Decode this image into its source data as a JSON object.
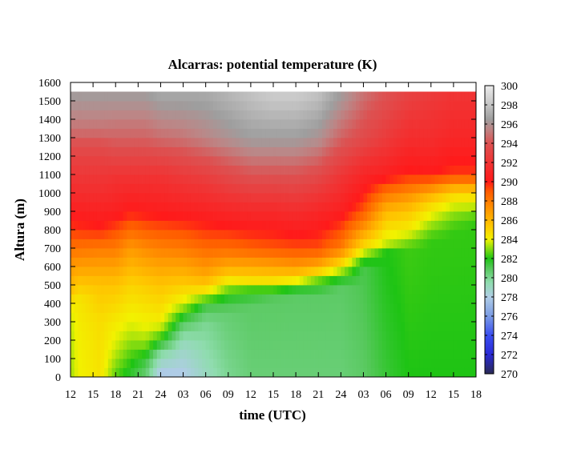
{
  "chart_data": {
    "type": "heatmap",
    "title": "Alcarras: potential temperature (K)",
    "xlabel": "time (UTC)",
    "ylabel": "Altura (m)",
    "x_tick_labels": [
      "12",
      "15",
      "18",
      "21",
      "24",
      "03",
      "06",
      "09",
      "12",
      "15",
      "18",
      "21",
      "24",
      "03",
      "06",
      "09",
      "12",
      "15",
      "18"
    ],
    "xlim_hours": [
      0,
      54
    ],
    "y_ticks": [
      0,
      100,
      200,
      300,
      400,
      500,
      600,
      700,
      800,
      900,
      1000,
      1100,
      1200,
      1300,
      1400,
      1500,
      1600
    ],
    "ylim": [
      0,
      1600
    ],
    "data_top_height": 1550,
    "colorbar": {
      "range": [
        270,
        300
      ],
      "ticks": [
        270,
        272,
        274,
        276,
        278,
        280,
        282,
        284,
        286,
        288,
        290,
        292,
        294,
        296,
        298,
        300
      ],
      "stops": [
        [
          270,
          "#2a2a55"
        ],
        [
          272,
          "#2a2ad6"
        ],
        [
          274,
          "#3a4ef0"
        ],
        [
          276,
          "#7a9be4"
        ],
        [
          278,
          "#b0cde6"
        ],
        [
          279.5,
          "#8fdcae"
        ],
        [
          281,
          "#55c85a"
        ],
        [
          282,
          "#1ec414"
        ],
        [
          283,
          "#86dc10"
        ],
        [
          284,
          "#f2f200"
        ],
        [
          285.5,
          "#ffc400"
        ],
        [
          287,
          "#ff9a00"
        ],
        [
          289,
          "#ff5a00"
        ],
        [
          290,
          "#ff1a1a"
        ],
        [
          292,
          "#f03434"
        ],
        [
          294,
          "#dc5252"
        ],
        [
          295.5,
          "#bc8686"
        ],
        [
          296.5,
          "#9e9e9e"
        ],
        [
          298,
          "#c4c4c4"
        ],
        [
          300,
          "#ececec"
        ]
      ]
    },
    "profiles": [
      {
        "hour": 0,
        "z": [
          0,
          150,
          300,
          400,
          450,
          600,
          800,
          1000,
          1200,
          1350,
          1550
        ],
        "theta": [
          283.2,
          283.4,
          283.6,
          284.3,
          285.5,
          287,
          289.5,
          291.3,
          293,
          295,
          296.5
        ]
      },
      {
        "hour": 1,
        "z": [
          0,
          200,
          420,
          500,
          600,
          800,
          1000,
          1200,
          1350,
          1550
        ],
        "theta": [
          284,
          284.1,
          284.4,
          285.3,
          286.8,
          289.6,
          291.5,
          293,
          295,
          296.5
        ]
      },
      {
        "hour": 4,
        "z": [
          0,
          300,
          500,
          700,
          800,
          1000,
          1200,
          1350,
          1550
        ],
        "theta": [
          284.5,
          284.7,
          285.5,
          288,
          289.8,
          291.5,
          293,
          295,
          296.5
        ]
      },
      {
        "hour": 6,
        "z": [
          0,
          150,
          300,
          500,
          700,
          900,
          1100,
          1300,
          1550
        ],
        "theta": [
          282.5,
          283.6,
          284.3,
          285.5,
          288,
          290.5,
          292,
          294.5,
          296.5
        ]
      },
      {
        "hour": 8,
        "z": [
          0,
          100,
          250,
          500,
          700,
          900,
          1100,
          1300,
          1550
        ],
        "theta": [
          281.5,
          282.3,
          283.6,
          285,
          287,
          290,
          292,
          294.5,
          296.5
        ]
      },
      {
        "hour": 10,
        "z": [
          0,
          100,
          150,
          250,
          500,
          700,
          900,
          1100,
          1300,
          1550
        ],
        "theta": [
          280.5,
          281.5,
          282.6,
          283.8,
          285.2,
          287.5,
          290.2,
          292,
          294.5,
          296.5
        ]
      },
      {
        "hour": 12,
        "z": [
          0,
          120,
          200,
          300,
          500,
          700,
          900,
          1100,
          1300,
          1550
        ],
        "theta": [
          277.5,
          279.5,
          282,
          284.2,
          285.5,
          287.8,
          290.3,
          292,
          294.8,
          297
        ]
      },
      {
        "hour": 15,
        "z": [
          0,
          200,
          300,
          400,
          500,
          700,
          900,
          1100,
          1300,
          1550
        ],
        "theta": [
          277.8,
          279.2,
          281,
          283.8,
          285.2,
          288,
          290.5,
          292.5,
          295,
          297
        ]
      },
      {
        "hour": 18,
        "z": [
          0,
          300,
          400,
          450,
          550,
          700,
          900,
          1100,
          1300,
          1550
        ],
        "theta": [
          279,
          280,
          281.5,
          284,
          286.5,
          288.5,
          290.7,
          292.8,
          295.5,
          297
        ]
      },
      {
        "hour": 21,
        "z": [
          0,
          350,
          450,
          520,
          600,
          700,
          900,
          1100,
          1300,
          1550
        ],
        "theta": [
          280,
          280.6,
          282,
          284.2,
          286.5,
          288.5,
          291,
          293.5,
          296,
          297.5
        ]
      },
      {
        "hour": 24,
        "z": [
          0,
          400,
          480,
          520,
          600,
          700,
          900,
          1100,
          1300,
          1550
        ],
        "theta": [
          280.5,
          280.8,
          282.5,
          284.5,
          286.5,
          288.8,
          291.2,
          294,
          296.5,
          298
        ]
      },
      {
        "hour": 27,
        "z": [
          0,
          420,
          480,
          520,
          600,
          700,
          900,
          1100,
          1300,
          1550
        ],
        "theta": [
          280.5,
          280.8,
          282.5,
          284.5,
          286.7,
          289,
          291.2,
          294,
          296.5,
          298.5
        ]
      },
      {
        "hour": 30,
        "z": [
          0,
          450,
          500,
          530,
          600,
          700,
          900,
          1100,
          1300,
          1550
        ],
        "theta": [
          280.5,
          280.8,
          282.5,
          284.5,
          287,
          289.2,
          291.5,
          294,
          296.5,
          298.5
        ]
      },
      {
        "hour": 33,
        "z": [
          0,
          450,
          520,
          560,
          620,
          700,
          900,
          1100,
          1300,
          1550
        ],
        "theta": [
          280.5,
          280.8,
          282.5,
          284.5,
          287,
          289.2,
          291,
          293.5,
          296,
          298
        ]
      },
      {
        "hour": 36,
        "z": [
          0,
          500,
          560,
          620,
          700,
          900,
          1100,
          1300,
          1550
        ],
        "theta": [
          280.5,
          280.8,
          282.8,
          285,
          288,
          290.5,
          292.2,
          294.5,
          296.5
        ]
      },
      {
        "hour": 39,
        "z": [
          0,
          600,
          660,
          700,
          800,
          900,
          1100,
          1300,
          1550
        ],
        "theta": [
          280.8,
          281.2,
          283,
          284.5,
          287,
          289,
          291,
          293.5,
          295
        ]
      },
      {
        "hour": 42,
        "z": [
          0,
          680,
          720,
          800,
          900,
          1000,
          1100,
          1300,
          1550
        ],
        "theta": [
          281.5,
          282,
          283.5,
          284.5,
          286,
          288.2,
          290.5,
          292.5,
          294
        ]
      },
      {
        "hour": 45,
        "z": [
          0,
          700,
          800,
          900,
          1000,
          1100,
          1300,
          1550
        ],
        "theta": [
          282,
          282.3,
          284.2,
          285.5,
          287.5,
          289.8,
          291.5,
          293
        ]
      },
      {
        "hour": 48,
        "z": [
          0,
          750,
          850,
          950,
          1000,
          1100,
          1300,
          1550
        ],
        "theta": [
          282,
          282.2,
          283.5,
          285,
          286.5,
          290,
          291.5,
          292.5
        ]
      },
      {
        "hour": 51,
        "z": [
          0,
          800,
          900,
          1000,
          1100,
          1300,
          1550
        ],
        "theta": [
          282,
          282.2,
          283.2,
          285,
          289.5,
          291,
          292
        ]
      },
      {
        "hour": 54,
        "z": [
          0,
          850,
          900,
          1000,
          1100,
          1300,
          1550
        ],
        "theta": [
          282,
          282.2,
          283,
          285,
          289.5,
          291,
          292
        ]
      }
    ]
  }
}
